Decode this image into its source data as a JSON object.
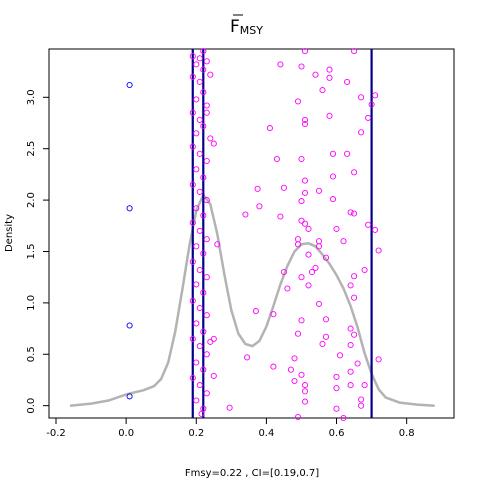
{
  "chart_data": {
    "type": "scatter",
    "title": "F",
    "title_subscript": "MSY",
    "title_overline": true,
    "xlabel": "Fmsy=0.22 , CI=[0.19,0.7]",
    "ylabel": "Density",
    "xlim": [
      -0.22,
      0.935
    ],
    "ylim": [
      -0.12,
      3.47
    ],
    "xticks": [
      "-0.2",
      "0.0",
      "0.2",
      "0.4",
      "0.6",
      "0.8"
    ],
    "yticks": [
      "0.0",
      "0.5",
      "1.0",
      "1.5",
      "2.0",
      "2.5",
      "3.0"
    ],
    "grid": false,
    "point_estimate": 0.22,
    "ci": [
      0.19,
      0.7
    ],
    "colors": {
      "density": "#b3b3b3",
      "vlines": "#00008b",
      "points_blue": "#0000ff",
      "points_magenta": "#ff00ff"
    },
    "density_curve": [
      [
        -0.16,
        0.0
      ],
      [
        -0.1,
        0.02
      ],
      [
        -0.05,
        0.05
      ],
      [
        0.0,
        0.11
      ],
      [
        0.05,
        0.15
      ],
      [
        0.08,
        0.19
      ],
      [
        0.1,
        0.26
      ],
      [
        0.12,
        0.42
      ],
      [
        0.14,
        0.72
      ],
      [
        0.16,
        1.12
      ],
      [
        0.18,
        1.55
      ],
      [
        0.2,
        1.9
      ],
      [
        0.22,
        2.05
      ],
      [
        0.24,
        1.96
      ],
      [
        0.26,
        1.67
      ],
      [
        0.28,
        1.28
      ],
      [
        0.3,
        0.93
      ],
      [
        0.32,
        0.7
      ],
      [
        0.34,
        0.6
      ],
      [
        0.36,
        0.58
      ],
      [
        0.38,
        0.63
      ],
      [
        0.4,
        0.77
      ],
      [
        0.42,
        0.97
      ],
      [
        0.44,
        1.18
      ],
      [
        0.46,
        1.36
      ],
      [
        0.48,
        1.5
      ],
      [
        0.5,
        1.57
      ],
      [
        0.52,
        1.58
      ],
      [
        0.54,
        1.55
      ],
      [
        0.56,
        1.47
      ],
      [
        0.58,
        1.38
      ],
      [
        0.6,
        1.27
      ],
      [
        0.62,
        1.14
      ],
      [
        0.64,
        0.97
      ],
      [
        0.66,
        0.76
      ],
      [
        0.68,
        0.51
      ],
      [
        0.7,
        0.31
      ],
      [
        0.72,
        0.16
      ],
      [
        0.74,
        0.08
      ],
      [
        0.78,
        0.03
      ],
      [
        0.83,
        0.01
      ],
      [
        0.88,
        0.0
      ]
    ],
    "series": [
      {
        "name": "",
        "color": "#0000ff",
        "points": [
          [
            0.01,
            3.12
          ],
          [
            0.01,
            1.92
          ],
          [
            0.01,
            0.78
          ],
          [
            0.01,
            0.09
          ]
        ]
      },
      {
        "name": "",
        "color": "#ff00ff",
        "points": [
          [
            0.19,
            3.4
          ],
          [
            0.2,
            3.32
          ],
          [
            0.21,
            3.38
          ],
          [
            0.22,
            3.27
          ],
          [
            0.23,
            3.35
          ],
          [
            0.19,
            3.2
          ],
          [
            0.21,
            3.15
          ],
          [
            0.22,
            3.05
          ],
          [
            0.2,
            2.98
          ],
          [
            0.23,
            2.92
          ],
          [
            0.19,
            2.85
          ],
          [
            0.21,
            2.78
          ],
          [
            0.22,
            2.72
          ],
          [
            0.2,
            2.65
          ],
          [
            0.24,
            2.6
          ],
          [
            0.19,
            2.52
          ],
          [
            0.21,
            2.45
          ],
          [
            0.23,
            2.38
          ],
          [
            0.2,
            2.3
          ],
          [
            0.22,
            2.22
          ],
          [
            0.19,
            2.15
          ],
          [
            0.21,
            2.08
          ],
          [
            0.23,
            2.0
          ],
          [
            0.2,
            1.92
          ],
          [
            0.22,
            1.85
          ],
          [
            0.19,
            1.78
          ],
          [
            0.21,
            1.7
          ],
          [
            0.23,
            1.62
          ],
          [
            0.2,
            1.55
          ],
          [
            0.22,
            1.48
          ],
          [
            0.19,
            1.4
          ],
          [
            0.21,
            1.32
          ],
          [
            0.23,
            1.25
          ],
          [
            0.2,
            1.18
          ],
          [
            0.22,
            1.1
          ],
          [
            0.19,
            1.02
          ],
          [
            0.21,
            0.95
          ],
          [
            0.23,
            0.88
          ],
          [
            0.2,
            0.8
          ],
          [
            0.22,
            0.72
          ],
          [
            0.19,
            0.65
          ],
          [
            0.21,
            0.58
          ],
          [
            0.23,
            0.5
          ],
          [
            0.2,
            0.42
          ],
          [
            0.22,
            0.35
          ],
          [
            0.19,
            0.27
          ],
          [
            0.21,
            0.2
          ],
          [
            0.23,
            0.12
          ],
          [
            0.2,
            0.05
          ],
          [
            0.22,
            -0.03
          ],
          [
            0.215,
            -0.08
          ],
          [
            0.25,
            2.55
          ],
          [
            0.26,
            1.57
          ],
          [
            0.25,
            0.65
          ],
          [
            0.25,
            0.29
          ],
          [
            0.24,
            3.22
          ],
          [
            0.22,
            3.45
          ],
          [
            0.295,
            -0.02
          ],
          [
            0.34,
            1.86
          ],
          [
            0.345,
            0.47
          ],
          [
            0.37,
            0.92
          ],
          [
            0.375,
            2.11
          ],
          [
            0.38,
            1.94
          ],
          [
            0.41,
            2.7
          ],
          [
            0.42,
            0.89
          ],
          [
            0.42,
            0.38
          ],
          [
            0.43,
            2.4
          ],
          [
            0.44,
            1.84
          ],
          [
            0.44,
            3.32
          ],
          [
            0.45,
            2.12
          ],
          [
            0.45,
            1.3
          ],
          [
            0.46,
            1.14
          ],
          [
            0.47,
            0.35
          ],
          [
            0.48,
            0.24
          ],
          [
            0.48,
            0.46
          ],
          [
            0.49,
            -0.11
          ],
          [
            0.49,
            0.7
          ],
          [
            0.49,
            1.57
          ],
          [
            0.5,
            3.3
          ],
          [
            0.49,
            2.96
          ],
          [
            0.5,
            2.4
          ],
          [
            0.49,
            1.62
          ],
          [
            0.5,
            1.8
          ],
          [
            0.5,
            1.99
          ],
          [
            0.5,
            1.25
          ],
          [
            0.5,
            0.83
          ],
          [
            0.5,
            0.3
          ],
          [
            0.51,
            0.2
          ],
          [
            0.51,
            0.14
          ],
          [
            0.51,
            0.04
          ],
          [
            0.51,
            3.45
          ],
          [
            0.51,
            2.78
          ],
          [
            0.51,
            2.74
          ],
          [
            0.51,
            2.19
          ],
          [
            0.51,
            2.07
          ],
          [
            0.51,
            1.77
          ],
          [
            0.52,
            1.72
          ],
          [
            0.52,
            1.47
          ],
          [
            0.52,
            1.17
          ],
          [
            0.53,
            1.3
          ],
          [
            0.54,
            3.22
          ],
          [
            0.54,
            1.34
          ],
          [
            0.55,
            2.09
          ],
          [
            0.55,
            1.6
          ],
          [
            0.55,
            1.55
          ],
          [
            0.55,
            0.99
          ],
          [
            0.56,
            3.07
          ],
          [
            0.56,
            0.6
          ],
          [
            0.57,
            1.44
          ],
          [
            0.57,
            0.67
          ],
          [
            0.57,
            0.84
          ],
          [
            0.58,
            3.27
          ],
          [
            0.58,
            3.19
          ],
          [
            0.58,
            2.82
          ],
          [
            0.59,
            2.45
          ],
          [
            0.59,
            2.23
          ],
          [
            0.59,
            2.01
          ],
          [
            0.6,
            1.72
          ],
          [
            0.6,
            0.28
          ],
          [
            0.6,
            0.17
          ],
          [
            0.6,
            -0.03
          ],
          [
            0.61,
            0.49
          ],
          [
            0.62,
            1.6
          ],
          [
            0.62,
            -0.12
          ],
          [
            0.63,
            3.15
          ],
          [
            0.63,
            2.45
          ],
          [
            0.64,
            1.88
          ],
          [
            0.64,
            1.17
          ],
          [
            0.64,
            0.59
          ],
          [
            0.64,
            0.33
          ],
          [
            0.64,
            0.2
          ],
          [
            0.64,
            0.75
          ],
          [
            0.65,
            3.45
          ],
          [
            0.65,
            2.27
          ],
          [
            0.65,
            1.87
          ],
          [
            0.65,
            1.26
          ],
          [
            0.65,
            1.05
          ],
          [
            0.65,
            0.69
          ],
          [
            0.66,
            0.41
          ],
          [
            0.67,
            3.0
          ],
          [
            0.67,
            2.66
          ],
          [
            0.67,
            0.06
          ],
          [
            0.67,
            0.0
          ],
          [
            0.68,
            0.2
          ],
          [
            0.68,
            1.32
          ],
          [
            0.69,
            2.8
          ],
          [
            0.69,
            1.76
          ],
          [
            0.7,
            2.93
          ],
          [
            0.71,
            1.71
          ],
          [
            0.71,
            3.02
          ],
          [
            0.72,
            1.51
          ],
          [
            0.72,
            0.45
          ],
          [
            0.23,
            2.85
          ],
          [
            0.24,
            0.62
          ]
        ]
      }
    ]
  }
}
